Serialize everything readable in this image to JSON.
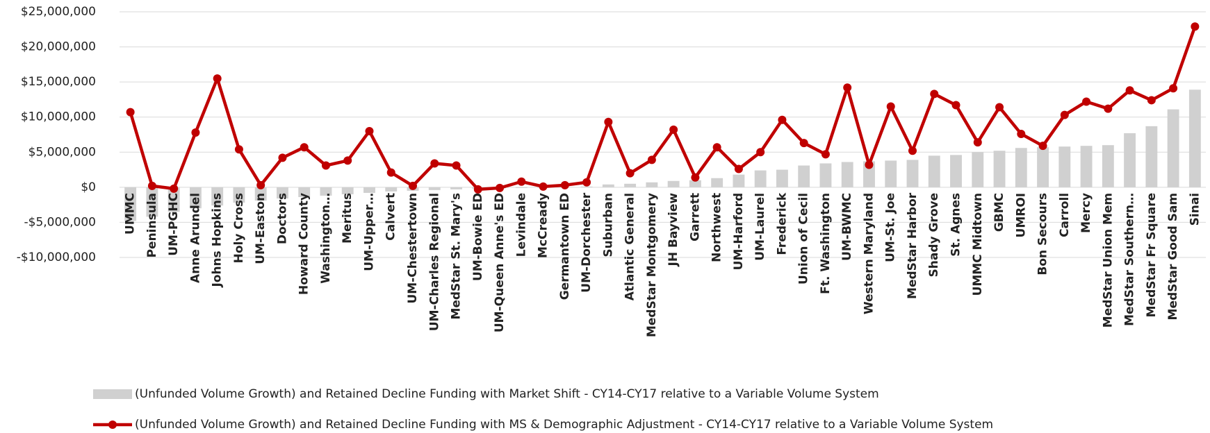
{
  "chart_data": {
    "type": "bar-line",
    "categories": [
      "UMMC",
      "Peninsula",
      "UM-PGHC",
      "Anne Arundel",
      "Johns Hopkins",
      "Holy Cross",
      "UM-Easton",
      "Doctors",
      "Howard County",
      "Washington…",
      "Meritus",
      "UM-Upper…",
      "Calvert",
      "UM-Chestertown",
      "UM-Charles Regional",
      "MedStar St. Mary's",
      "UM-Bowie ED",
      "UM-Queen Anne's ED",
      "Levindale",
      "McCready",
      "Germantown ED",
      "UM-Dorchester",
      "Suburban",
      "Atlantic General",
      "MedStar Montgomery",
      "JH Bayview",
      "Garrett",
      "Northwest",
      "UM-Harford",
      "UM-Laurel",
      "Frederick",
      "Union of Cecil",
      "Ft. Washington",
      "UM-BWMC",
      "Western Maryland",
      "UM-St. Joe",
      "MedStar Harbor",
      "Shady Grove",
      "St. Agnes",
      "UMMC Midtown",
      "GBMC",
      "UMROI",
      "Bon Secours",
      "Carroll",
      "Mercy",
      "MedStar Union Mem",
      "MedStar Southern…",
      "MedStar Fr Square",
      "MedStar Good Sam",
      "Sinai"
    ],
    "series": [
      {
        "name": "(Unfunded Volume Growth) and Retained Decline Funding with Market Shift - CY14-CY17 relative to a Variable Volume System",
        "type": "bar",
        "color": "#d0d0d0",
        "values": [
          -4800000,
          -4200000,
          -3500000,
          -3000000,
          -2600000,
          -2200000,
          -1900000,
          -1600000,
          -1400000,
          -1200000,
          -1000000,
          -800000,
          -600000,
          -500000,
          -400000,
          -300000,
          -200000,
          -150000,
          -100000,
          -50000,
          0,
          100000,
          400000,
          500000,
          700000,
          900000,
          1000000,
          1300000,
          1800000,
          2400000,
          2500000,
          3100000,
          3400000,
          3600000,
          3700000,
          3800000,
          3900000,
          4500000,
          4600000,
          5000000,
          5200000,
          5600000,
          5700000,
          5800000,
          5900000,
          6000000,
          7700000,
          8700000,
          11100000,
          13900000
        ]
      },
      {
        "name": "(Unfunded Volume Growth) and Retained Decline Funding with MS & Demographic Adjustment - CY14-CY17 relative to a Variable Volume System",
        "type": "line",
        "color": "#c00000",
        "values": [
          10700000,
          200000,
          -200000,
          7800000,
          15500000,
          5400000,
          300000,
          4200000,
          5700000,
          3100000,
          3800000,
          8000000,
          2100000,
          200000,
          3400000,
          3100000,
          -300000,
          -100000,
          800000,
          100000,
          300000,
          700000,
          9300000,
          2000000,
          3900000,
          8200000,
          1400000,
          5700000,
          2600000,
          5000000,
          9600000,
          6300000,
          4700000,
          14200000,
          3200000,
          11500000,
          5200000,
          13300000,
          11700000,
          6400000,
          11400000,
          7600000,
          5900000,
          10300000,
          12200000,
          11200000,
          13800000,
          12400000,
          14100000,
          22900000
        ]
      }
    ],
    "ylim": [
      -10000000,
      25000000
    ],
    "yticks": [
      {
        "value": -10000000,
        "label": "-$10,000,000"
      },
      {
        "value": -5000000,
        "label": "-$5,000,000"
      },
      {
        "value": 0,
        "label": "$0"
      },
      {
        "value": 5000000,
        "label": "$5,000,000"
      },
      {
        "value": 10000000,
        "label": "$10,000,000"
      },
      {
        "value": 15000000,
        "label": "$15,000,000"
      },
      {
        "value": 20000000,
        "label": "$20,000,000"
      },
      {
        "value": 25000000,
        "label": "$25,000,000"
      }
    ],
    "grid": true
  }
}
